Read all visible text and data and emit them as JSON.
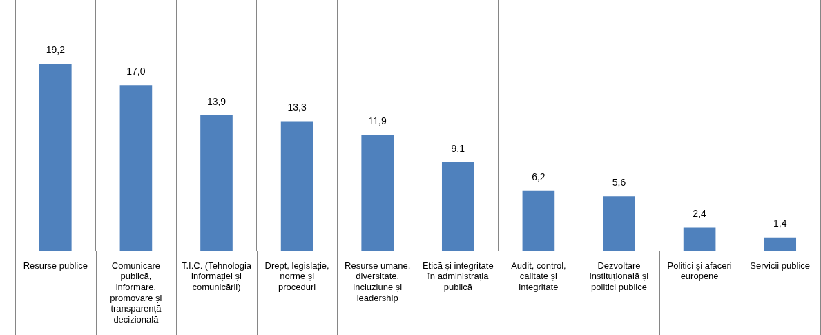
{
  "chart_data": {
    "type": "bar",
    "categories": [
      "Resurse publice",
      "Comunicare publică, informare, promovare și transparență decizională",
      "T.I.C. (Tehnologia informației și comunicării)",
      "Drept, legislație, norme și proceduri",
      "Resurse umane, diversitate, incluziune și leadership",
      "Etică și integritate în administrația publică",
      "Audit, control, calitate și integritate",
      "Dezvoltare instituțională și politici publice",
      "Politici și afaceri europene",
      "Servicii publice"
    ],
    "values": [
      19.2,
      17.0,
      13.9,
      13.3,
      11.9,
      9.1,
      6.2,
      5.6,
      2.4,
      1.4
    ],
    "value_labels": [
      "19,2",
      "17,0",
      "13,9",
      "13,3",
      "11,9",
      "9,1",
      "6,2",
      "5,6",
      "2,4",
      "1,4"
    ],
    "color": "#4f81bd",
    "grid": "x",
    "legend": false,
    "tick_labels": "x"
  }
}
